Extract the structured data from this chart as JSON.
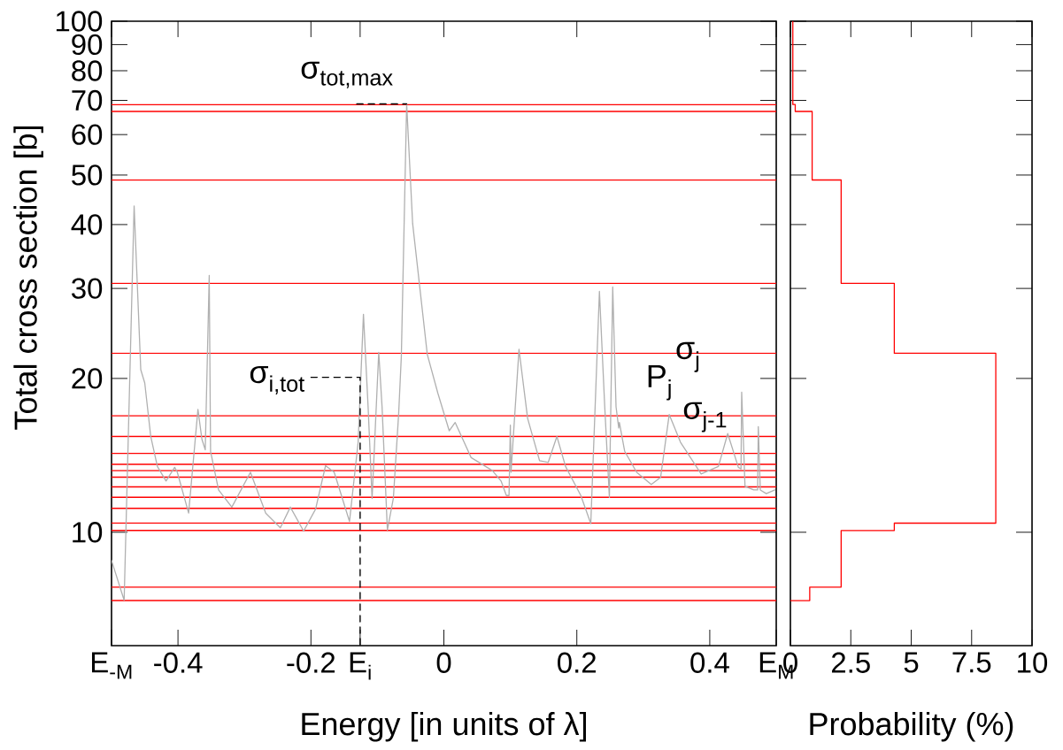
{
  "chart_data": [
    {
      "type": "line",
      "xlabel": "Energy [in units of λ]",
      "ylabel": "Total cross section [b]",
      "log": "y",
      "grid": false,
      "xlim": [
        -0.5,
        0.5
      ],
      "ylim": [
        6,
        100
      ],
      "xticks": [
        {
          "value": -0.5,
          "label": "E$_{-M}$"
        },
        -0.4,
        -0.2,
        {
          "value": -0.126,
          "label": "E$_{i}$"
        },
        0,
        0.2,
        0.4,
        {
          "value": 0.5,
          "label": "E$_{M}$"
        }
      ],
      "yticks": [
        10,
        20,
        30,
        40,
        50,
        60,
        70,
        80,
        90,
        100
      ],
      "series": [
        {
          "color": "#b0b0b0",
          "x": [
            -0.5,
            -0.481,
            -0.466,
            -0.456,
            -0.45,
            -0.441,
            -0.431,
            -0.418,
            -0.405,
            -0.401,
            -0.384,
            -0.37,
            -0.364,
            -0.359,
            -0.353,
            -0.351,
            -0.339,
            -0.319,
            -0.291,
            -0.268,
            -0.246,
            -0.231,
            -0.211,
            -0.193,
            -0.178,
            -0.165,
            -0.142,
            -0.129,
            -0.121,
            -0.114,
            -0.108,
            -0.098,
            -0.093,
            -0.085,
            -0.076,
            -0.068,
            -0.064,
            -0.056,
            -0.047,
            -0.025,
            -0.009,
            0.008,
            0.017,
            0.041,
            0.073,
            0.086,
            0.094,
            0.098,
            0.1,
            0.101,
            0.113,
            0.126,
            0.144,
            0.157,
            0.17,
            0.183,
            0.206,
            0.221,
            0.234,
            0.242,
            0.249,
            0.254,
            0.259,
            0.263,
            0.264,
            0.272,
            0.29,
            0.312,
            0.326,
            0.339,
            0.356,
            0.387,
            0.413,
            0.427,
            0.443,
            0.447,
            0.448,
            0.453,
            0.466,
            0.472,
            0.473,
            0.476,
            0.485,
            0.498
          ],
          "values": [
            8.81,
            7.36,
            43.5,
            20.8,
            19.6,
            15.4,
            13.45,
            12.6,
            13.4,
            13.1,
            10.9,
            17.4,
            15.2,
            14.5,
            31.8,
            14.4,
            12.1,
            11.2,
            13.1,
            10.9,
            10.2,
            11.2,
            10.05,
            11.1,
            13.5,
            13.1,
            10.5,
            15.0,
            26.7,
            17.6,
            11.65,
            22.5,
            17.6,
            10.1,
            11.65,
            17.1,
            22.1,
            68.9,
            40.2,
            22.3,
            18.7,
            15.8,
            16.4,
            14.0,
            13.2,
            12.6,
            11.8,
            11.8,
            16.2,
            13.1,
            22.8,
            16.7,
            13.8,
            13.7,
            15.4,
            13.45,
            11.8,
            10.4,
            29.6,
            17.6,
            11.7,
            30.2,
            17.6,
            16.0,
            16.4,
            14.4,
            13.1,
            12.4,
            12.8,
            17.0,
            15.0,
            13.0,
            13.45,
            15.6,
            13.4,
            13.3,
            18.8,
            12.3,
            12.1,
            12.1,
            16.1,
            12.1,
            11.9,
            12.1
          ]
        },
        {
          "color": "#000000",
          "line_style": "dashed",
          "x": [
            -0.131,
            -0.056
          ],
          "values": [
            68.9,
            68.9
          ]
        },
        {
          "color": "#000000",
          "line_style": "dashed",
          "x": [
            -0.2,
            -0.126,
            -0.126
          ],
          "values": [
            20.1,
            20.1,
            6
          ]
        }
      ],
      "ref_lines": [
        {
          "axis": "y",
          "value": 68.7,
          "color": "#ff0000"
        },
        {
          "axis": "y",
          "value": 66.6,
          "color": "#ff0000"
        },
        {
          "axis": "y",
          "value": 48.9,
          "color": "#ff0000"
        },
        {
          "axis": "y",
          "value": 30.7,
          "color": "#ff0000"
        },
        {
          "axis": "y",
          "value": 22.4,
          "color": "#ff0000"
        },
        {
          "axis": "y",
          "value": 16.9,
          "color": "#ff0000"
        },
        {
          "axis": "y",
          "value": 15.4,
          "color": "#ff0000"
        },
        {
          "axis": "y",
          "value": 14.27,
          "color": "#ff0000"
        },
        {
          "axis": "y",
          "value": 13.58,
          "color": "#ff0000"
        },
        {
          "axis": "y",
          "value": 13.2,
          "color": "#ff0000"
        },
        {
          "axis": "y",
          "value": 12.82,
          "color": "#ff0000"
        },
        {
          "axis": "y",
          "value": 12.27,
          "color": "#ff0000"
        },
        {
          "axis": "y",
          "value": 11.71,
          "color": "#ff0000"
        },
        {
          "axis": "y",
          "value": 11.14,
          "color": "#ff0000"
        },
        {
          "axis": "y",
          "value": 10.42,
          "color": "#ff0000"
        },
        {
          "axis": "y",
          "value": 10.08,
          "color": "#ff0000"
        },
        {
          "axis": "y",
          "value": 7.81,
          "color": "#ff0000"
        },
        {
          "axis": "y",
          "value": 7.35,
          "color": "#ff0000"
        }
      ],
      "annotations": [
        "σ$_{tot,max}$",
        "σ$_{i,tot}$",
        "σ$_{j}$",
        "P$_{j}$",
        "σ$_{j-1}$"
      ]
    },
    {
      "type": "line",
      "xlabel": "Probability (%)",
      "log": "y",
      "grid": false,
      "tick_labels": "x",
      "xlim": [
        0,
        10
      ],
      "ylim": [
        6,
        100
      ],
      "xticks": [
        0,
        2.5,
        5,
        7.5,
        10
      ],
      "yticks": [
        10,
        20,
        30,
        40,
        50,
        60,
        70,
        80,
        90,
        100
      ],
      "series": [
        {
          "color": "#ff0000",
          "x": [
            0,
            0.8,
            0.8,
            2.1,
            2.1,
            4.3,
            4.3,
            8.5,
            8.5,
            4.3,
            4.3,
            2.1,
            2.1,
            0.9,
            0.9,
            0.2,
            0.2,
            0.1,
            0.1
          ],
          "values": [
            7.35,
            7.35,
            7.81,
            7.81,
            10.08,
            10.08,
            10.42,
            10.42,
            22.4,
            22.4,
            30.7,
            30.7,
            48.9,
            48.9,
            66.6,
            66.6,
            68.7,
            68.7,
            100
          ]
        }
      ]
    }
  ]
}
